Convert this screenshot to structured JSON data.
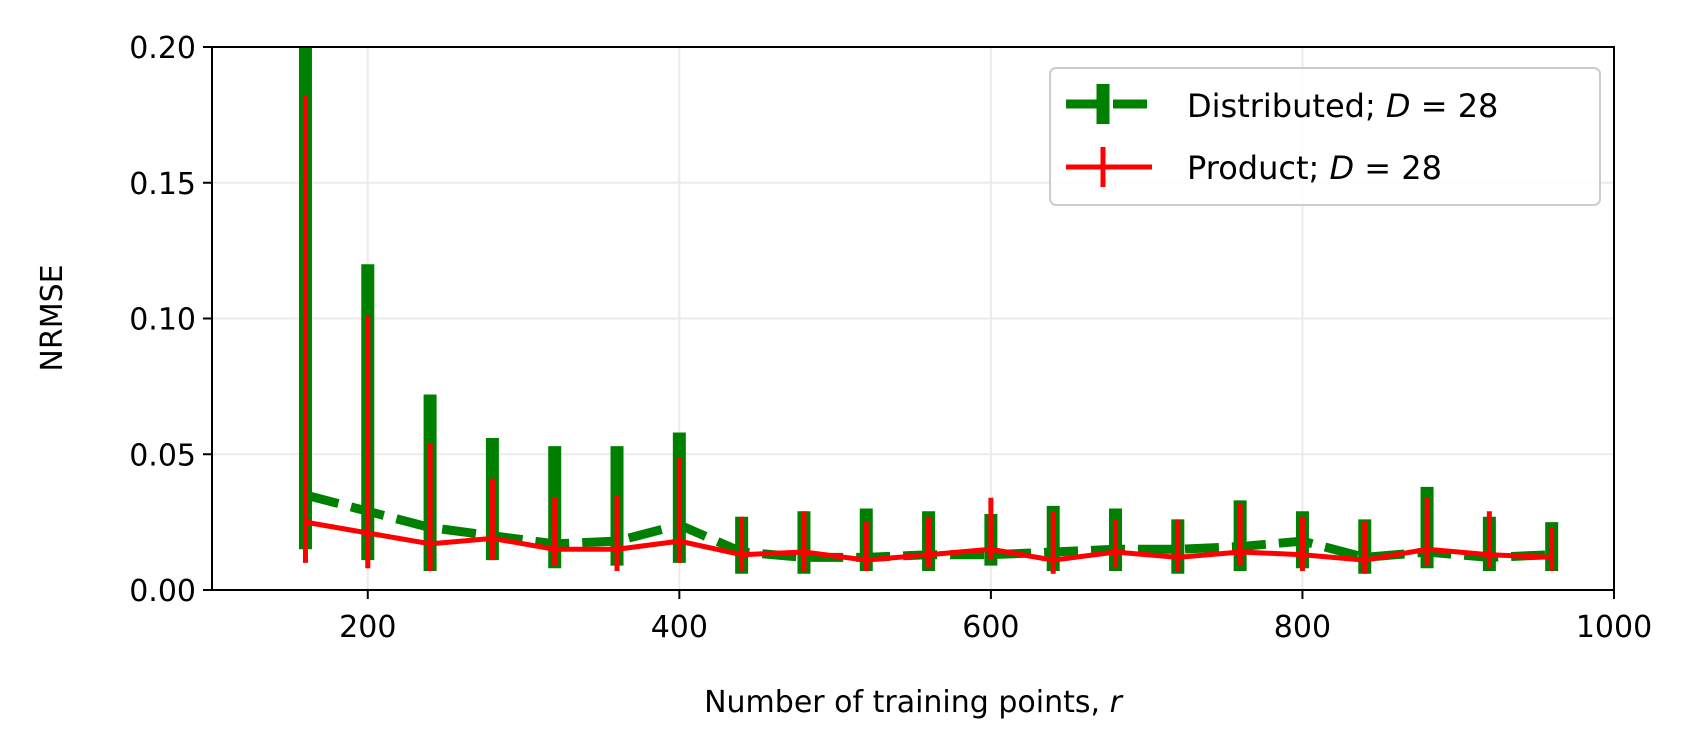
{
  "chart_data": {
    "type": "line",
    "title": "",
    "xlabel": "Number of training points, ",
    "xlabel_var": "r",
    "ylabel": "NRMSE",
    "xlim": [
      100,
      1000
    ],
    "ylim": [
      0,
      0.2
    ],
    "xticks": [
      200,
      400,
      600,
      800,
      1000
    ],
    "xtick_labels": [
      "200",
      "400",
      "600",
      "800",
      "1000"
    ],
    "yticks": [
      0.0,
      0.05,
      0.1,
      0.15,
      0.2
    ],
    "ytick_labels": [
      "0.00",
      "0.05",
      "0.10",
      "0.15",
      "0.20"
    ],
    "grid": true,
    "legend_position": "top-right",
    "x": [
      160,
      200,
      240,
      280,
      320,
      360,
      400,
      440,
      480,
      520,
      560,
      600,
      640,
      680,
      720,
      760,
      800,
      840,
      880,
      920,
      960
    ],
    "series": [
      {
        "name": "Distributed",
        "name_suffix": "; ",
        "legend_var": "D",
        "legend_eq": " = 28",
        "color": "#008000",
        "style": "dashed",
        "values": [
          0.035,
          0.029,
          0.023,
          0.02,
          0.017,
          0.018,
          0.024,
          0.014,
          0.012,
          0.012,
          0.013,
          0.013,
          0.014,
          0.015,
          0.015,
          0.016,
          0.018,
          0.012,
          0.014,
          0.012,
          0.013
        ],
        "err_low": [
          0.015,
          0.011,
          0.007,
          0.011,
          0.008,
          0.009,
          0.01,
          0.006,
          0.006,
          0.007,
          0.007,
          0.009,
          0.007,
          0.007,
          0.006,
          0.007,
          0.008,
          0.006,
          0.008,
          0.007,
          0.007
        ],
        "err_high": [
          0.2,
          0.12,
          0.072,
          0.056,
          0.053,
          0.053,
          0.058,
          0.027,
          0.029,
          0.03,
          0.029,
          0.028,
          0.031,
          0.03,
          0.026,
          0.033,
          0.029,
          0.026,
          0.038,
          0.027,
          0.025
        ]
      },
      {
        "name": "Product",
        "name_suffix": "; ",
        "legend_var": "D",
        "legend_eq": " = 28",
        "color": "#ff0000",
        "style": "solid",
        "values": [
          0.025,
          0.021,
          0.017,
          0.019,
          0.015,
          0.015,
          0.018,
          0.013,
          0.014,
          0.011,
          0.013,
          0.015,
          0.011,
          0.014,
          0.012,
          0.014,
          0.013,
          0.011,
          0.015,
          0.013,
          0.012
        ],
        "err_low": [
          0.01,
          0.008,
          0.007,
          0.011,
          0.009,
          0.007,
          0.01,
          0.007,
          0.007,
          0.007,
          0.008,
          0.011,
          0.006,
          0.008,
          0.007,
          0.009,
          0.007,
          0.006,
          0.009,
          0.008,
          0.007
        ],
        "err_high": [
          0.182,
          0.101,
          0.054,
          0.041,
          0.034,
          0.035,
          0.049,
          0.027,
          0.029,
          0.025,
          0.027,
          0.034,
          0.029,
          0.026,
          0.026,
          0.032,
          0.027,
          0.025,
          0.034,
          0.029,
          0.023
        ]
      }
    ]
  }
}
